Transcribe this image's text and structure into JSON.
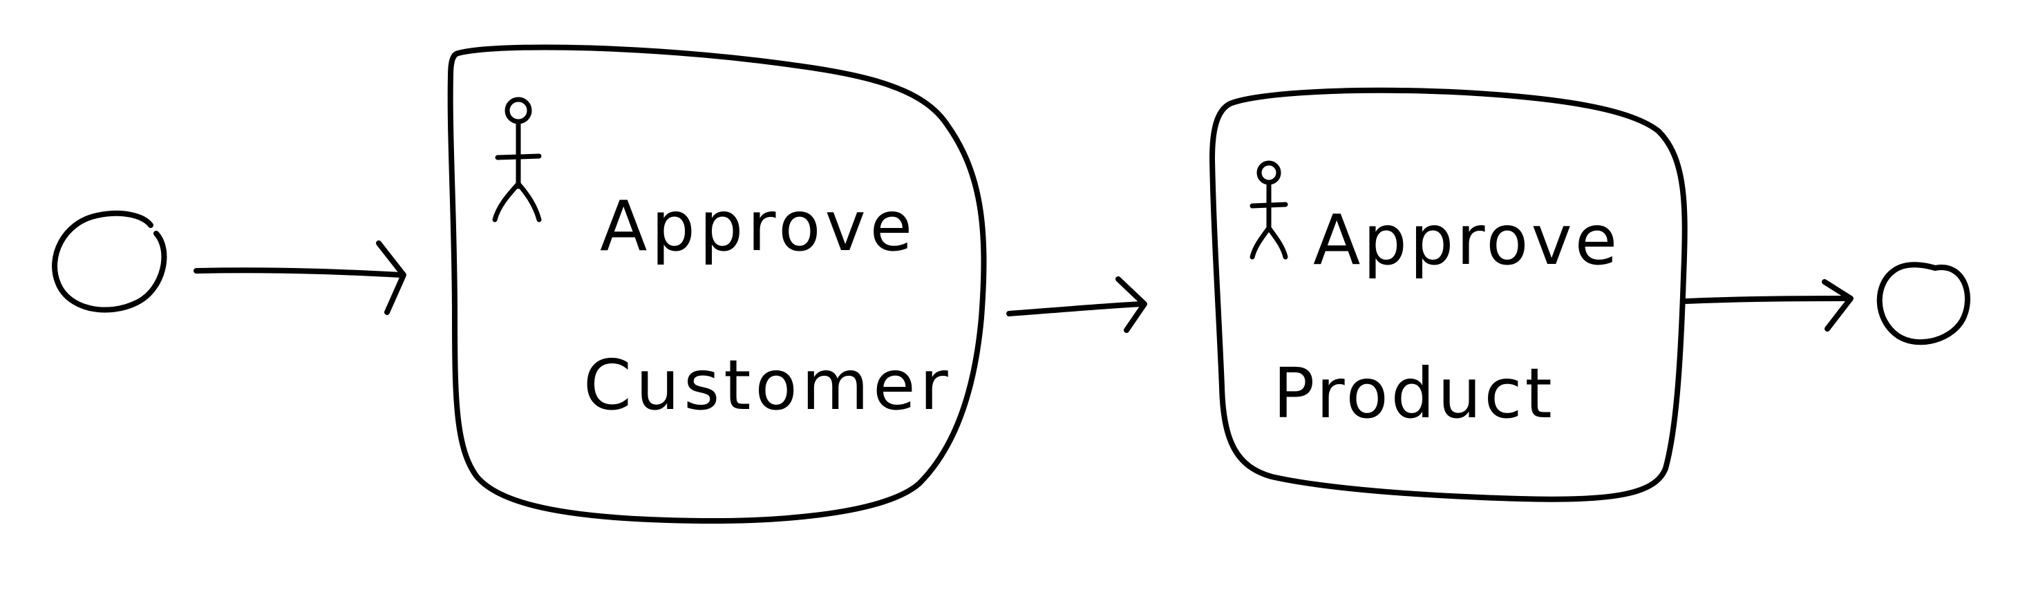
{
  "diagram": {
    "type": "process-flow",
    "style": "hand-drawn",
    "stroke_color": "#000000",
    "background_color": "#ffffff",
    "start_event": {
      "shape": "circle"
    },
    "end_event": {
      "shape": "circle"
    },
    "tasks": [
      {
        "kind": "user-task",
        "icon": "person-icon",
        "line1": "Approve",
        "line2": "Customer"
      },
      {
        "kind": "user-task",
        "icon": "person-icon",
        "line1": "Approve",
        "line2": "Product"
      }
    ],
    "flows": [
      {
        "from": "start",
        "to": "task-1"
      },
      {
        "from": "task-1",
        "to": "task-2"
      },
      {
        "from": "task-2",
        "to": "end"
      }
    ]
  }
}
